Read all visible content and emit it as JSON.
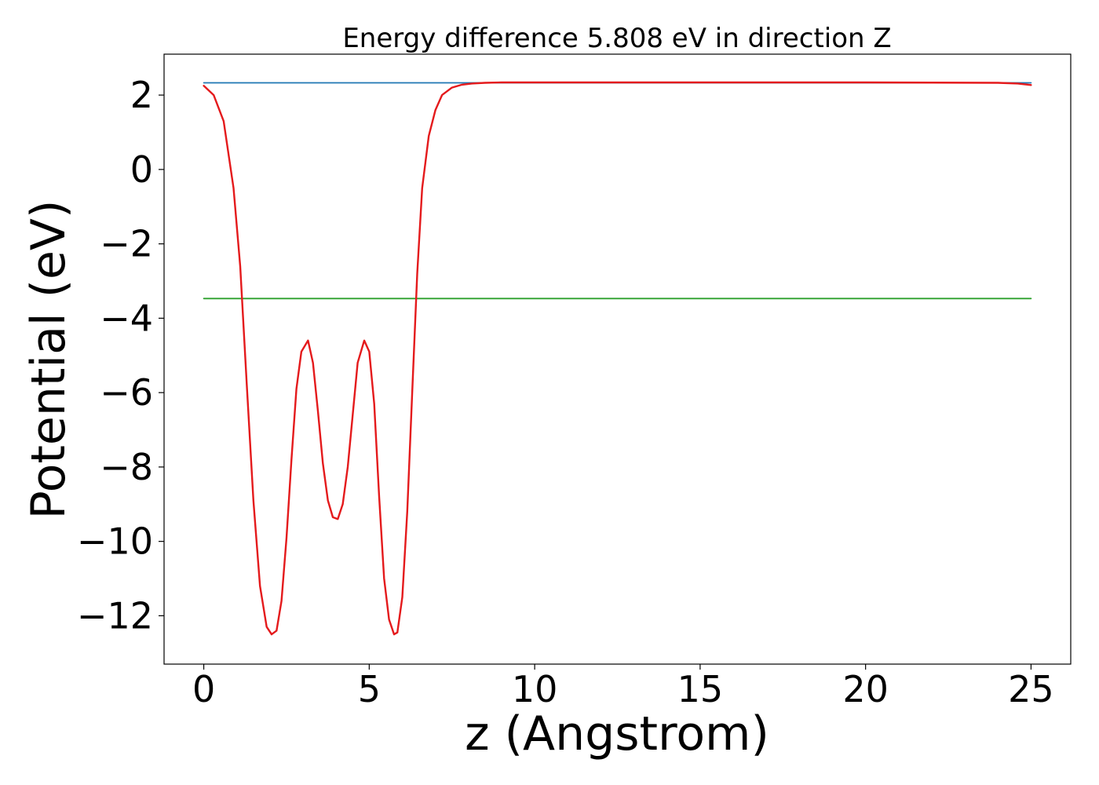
{
  "chart_data": {
    "type": "line",
    "title": "Energy difference 5.808 eV in direction Z",
    "xlabel": "z (Angstrom)",
    "ylabel": "Potential (eV)",
    "xlim": [
      -1.2,
      26.2
    ],
    "ylim": [
      -13.3,
      3.1
    ],
    "xticks": [
      0,
      5,
      10,
      15,
      20,
      25
    ],
    "xtick_labels": [
      "0",
      "5",
      "10",
      "15",
      "20",
      "25"
    ],
    "yticks": [
      2,
      0,
      -2,
      -4,
      -6,
      -8,
      -10,
      -12
    ],
    "ytick_labels": [
      "2",
      "0",
      "−2",
      "−4",
      "−6",
      "−8",
      "−10",
      "−12"
    ],
    "grid": false,
    "series": [
      {
        "color": "#1f77b4",
        "x": [
          0,
          25
        ],
        "y": [
          2.33,
          2.33
        ]
      },
      {
        "color": "#2ca02c",
        "x": [
          0,
          25
        ],
        "y": [
          -3.47,
          -3.47
        ]
      },
      {
        "color": "#e41a1c",
        "x": [
          0,
          0.3,
          0.6,
          0.9,
          1.1,
          1.3,
          1.5,
          1.7,
          1.9,
          2.05,
          2.2,
          2.35,
          2.5,
          2.65,
          2.8,
          2.95,
          3.15,
          3.3,
          3.45,
          3.6,
          3.75,
          3.9,
          4.05,
          4.2,
          4.35,
          4.5,
          4.65,
          4.85,
          5.0,
          5.15,
          5.3,
          5.45,
          5.6,
          5.75,
          5.85,
          6.0,
          6.15,
          6.3,
          6.45,
          6.6,
          6.8,
          7.0,
          7.2,
          7.5,
          7.8,
          8.1,
          8.5,
          9.0,
          10.0,
          15.0,
          20.0,
          24.0,
          24.6,
          25.0
        ],
        "y": [
          2.25,
          2.0,
          1.3,
          -0.5,
          -2.6,
          -5.8,
          -8.9,
          -11.2,
          -12.3,
          -12.5,
          -12.4,
          -11.6,
          -9.9,
          -7.8,
          -5.9,
          -4.9,
          -4.6,
          -5.2,
          -6.5,
          -7.9,
          -8.9,
          -9.35,
          -9.4,
          -9.0,
          -8.0,
          -6.6,
          -5.2,
          -4.6,
          -4.9,
          -6.3,
          -8.8,
          -11.0,
          -12.1,
          -12.5,
          -12.45,
          -11.5,
          -9.2,
          -6.0,
          -2.8,
          -0.5,
          0.9,
          1.6,
          2.0,
          2.2,
          2.28,
          2.31,
          2.33,
          2.34,
          2.34,
          2.34,
          2.34,
          2.33,
          2.31,
          2.27
        ]
      }
    ]
  }
}
